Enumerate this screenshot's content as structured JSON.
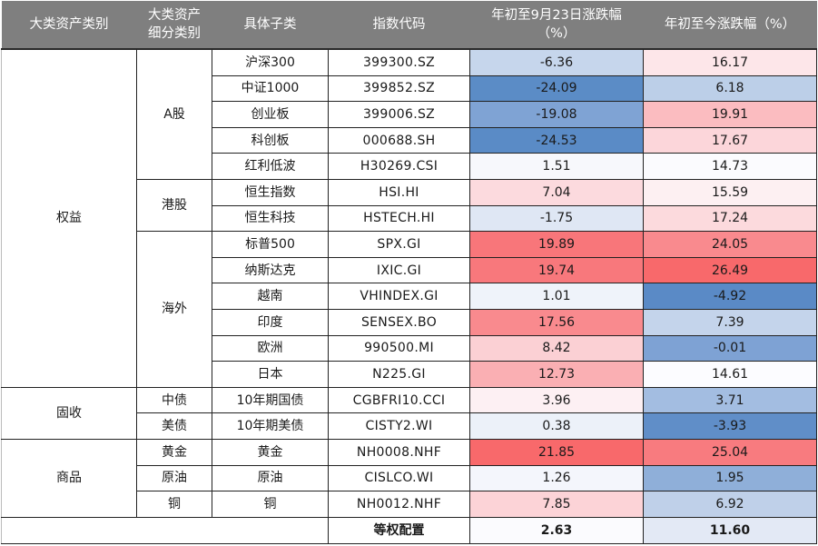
{
  "table": {
    "headers": [
      "大类资产类别",
      "大类资产\n细分类别",
      "具体子类",
      "指数代码",
      "年初至9月23日涨跌幅（%）",
      "年初至今涨跌幅（%）"
    ],
    "header_lines": {
      "col1": "大类资产类别",
      "col2_line1": "大类资产",
      "col2_line2": "细分类别",
      "col3": "具体子类",
      "col4": "指数代码",
      "col5_line1": "年初至9月23日涨跌幅",
      "col5_line2": "（%）",
      "col6": "年初至今涨跌幅（%）"
    },
    "groups": [
      {
        "label": "权益",
        "subgroups": [
          {
            "label": "A股",
            "rows": [
              0,
              1,
              2,
              3,
              4
            ]
          },
          {
            "label": "港股",
            "rows": [
              5,
              6
            ]
          },
          {
            "label": "海外",
            "rows": [
              7,
              8,
              9,
              10,
              11,
              12
            ]
          }
        ]
      },
      {
        "label": "固收",
        "subgroups": [
          {
            "label": "中债",
            "rows": [
              13
            ]
          },
          {
            "label": "美债",
            "rows": [
              14
            ]
          }
        ]
      },
      {
        "label": "商品",
        "subgroups": [
          {
            "label": "黄金",
            "rows": [
              15
            ]
          },
          {
            "label": "原油",
            "rows": [
              16
            ]
          },
          {
            "label": "铜",
            "rows": [
              17
            ]
          }
        ]
      }
    ],
    "rows": [
      {
        "sub": "沪深300",
        "code": "399300.SZ",
        "ytd_0923": "-6.36",
        "ytd_now": "16.17",
        "c1": "#c6d6ec",
        "c2": "#fde6e9"
      },
      {
        "sub": "中证1000",
        "code": "399852.SZ",
        "ytd_0923": "-24.09",
        "ytd_now": "6.18",
        "c1": "#5b8cc6",
        "c2": "#bccfe8"
      },
      {
        "sub": "创业板",
        "code": "399006.SZ",
        "ytd_0923": "-19.08",
        "ytd_now": "19.91",
        "c1": "#7fa3d4",
        "c2": "#fbbcc0"
      },
      {
        "sub": "科创板",
        "code": "000688.SH",
        "ytd_0923": "-24.53",
        "ytd_now": "17.67",
        "c1": "#5a8bc6",
        "c2": "#fcd6da"
      },
      {
        "sub": "红利低波",
        "code": "H30269.CSI",
        "ytd_0923": "1.51",
        "ytd_now": "14.73",
        "c1": "#f7f8fc",
        "c2": "#fbfbfe"
      },
      {
        "sub": "恒生指数",
        "code": "HSI.HI",
        "ytd_0923": "7.04",
        "ytd_now": "15.59",
        "c1": "#fcdade",
        "c2": "#fdf0f2"
      },
      {
        "sub": "恒生科技",
        "code": "HSTECH.HI",
        "ytd_0923": "-1.75",
        "ytd_now": "17.24",
        "c1": "#dfe7f4",
        "c2": "#fcdadd"
      },
      {
        "sub": "标普500",
        "code": "SPX.GI",
        "ytd_0923": "19.89",
        "ytd_now": "24.05",
        "c1": "#f8767a",
        "c2": "#f98a8e"
      },
      {
        "sub": "纳斯达克",
        "code": "IXIC.GI",
        "ytd_0923": "19.74",
        "ytd_now": "26.49",
        "c1": "#f8787c",
        "c2": "#f8696b"
      },
      {
        "sub": "越南",
        "code": "VHINDEX.GI",
        "ytd_0923": "1.01",
        "ytd_now": "-4.92",
        "c1": "#eff3fa",
        "c2": "#5a8ac6"
      },
      {
        "sub": "印度",
        "code": "SENSEX.BO",
        "ytd_0923": "17.56",
        "ytd_now": "7.39",
        "c1": "#f98a8e",
        "c2": "#c4d4eb"
      },
      {
        "sub": "欧洲",
        "code": "990500.MI",
        "ytd_0923": "8.42",
        "ytd_now": "-0.01",
        "c1": "#fbd0d4",
        "c2": "#7ea2d4"
      },
      {
        "sub": "日本",
        "code": "N225.GI",
        "ytd_0923": "12.73",
        "ytd_now": "14.61",
        "c1": "#faafb3",
        "c2": "#fcfcff"
      },
      {
        "sub": "10年期国债",
        "code": "CGBFRI10.CCI",
        "ytd_0923": "3.96",
        "ytd_now": "3.71",
        "c1": "#fdf0f3",
        "c2": "#a3bde1"
      },
      {
        "sub": "10年期美债",
        "code": "CISTY2.WI",
        "ytd_0923": "0.38",
        "ytd_now": "-3.93",
        "c1": "#ecf1f9",
        "c2": "#608ec8"
      },
      {
        "sub": "黄金",
        "code": "NH0008.NHF",
        "ytd_0923": "21.85",
        "ytd_now": "25.04",
        "c1": "#f8696b",
        "c2": "#f87b7f"
      },
      {
        "sub": "原油",
        "code": "CISLCO.WI",
        "ytd_0923": "1.26",
        "ytd_now": "1.95",
        "c1": "#f4f6fc",
        "c2": "#8fafd9"
      },
      {
        "sub": "铜",
        "code": "NH0012.NHF",
        "ytd_0923": "7.85",
        "ytd_now": "6.92",
        "c1": "#fcd3d7",
        "c2": "#bfd0e9"
      }
    ],
    "total": {
      "label": "等权配置",
      "ytd_0923": "2.63",
      "ytd_now": "11.60",
      "c1": "#fbfbfe",
      "c2": "#e3e9f5"
    }
  },
  "colors": {
    "header_bg": "#7f7f7f",
    "header_text": "#ffffff",
    "positive_max": "#f8696b",
    "negative_max": "#5a8ac6",
    "neutral": "#fcfcff"
  }
}
